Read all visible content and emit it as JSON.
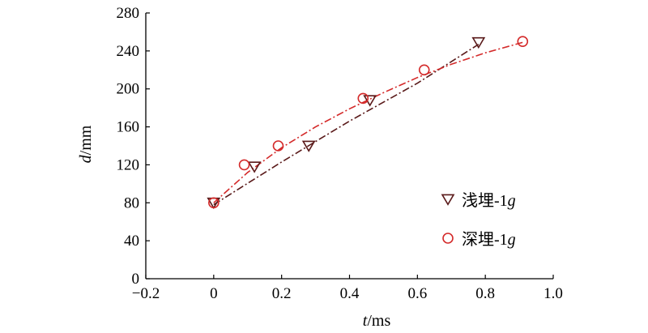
{
  "chart_data": {
    "type": "scatter",
    "xlabel_var": "t",
    "xlabel_unit": "/ms",
    "ylabel_var": "d",
    "ylabel_unit": "/mm",
    "xlim": [
      -0.2,
      1.0
    ],
    "ylim": [
      0,
      280
    ],
    "xticks": [
      -0.2,
      0,
      0.2,
      0.4,
      0.6,
      0.8,
      1.0
    ],
    "xtick_labels": [
      "−0.2",
      "0",
      "0.2",
      "0.4",
      "0.6",
      "0.8",
      "1.0"
    ],
    "yticks": [
      0,
      40,
      80,
      120,
      160,
      200,
      240,
      280
    ],
    "ytick_labels": [
      "0",
      "40",
      "80",
      "120",
      "160",
      "200",
      "240",
      "280"
    ],
    "grid": false,
    "legend_position": "lower-right",
    "series": [
      {
        "name": "浅埋-1g",
        "name_text": "浅埋-1",
        "name_suffix": "g",
        "marker": "triangle-down",
        "line": "dash-dot",
        "color": "#5a1a1a",
        "x": [
          0,
          0.12,
          0.28,
          0.46,
          0.78
        ],
        "y": [
          80,
          118,
          140,
          188,
          249
        ],
        "fit": [
          [
            0,
            78
          ],
          [
            0.2,
            123
          ],
          [
            0.4,
            166
          ],
          [
            0.6,
            206
          ],
          [
            0.78,
            247
          ]
        ]
      },
      {
        "name": "深埋-1g",
        "name_text": "深埋-1",
        "name_suffix": "g",
        "marker": "circle",
        "line": "dash-dot",
        "color": "#d42a2a",
        "x": [
          0,
          0.09,
          0.19,
          0.44,
          0.62,
          0.91
        ],
        "y": [
          80,
          120,
          140,
          190,
          220,
          250
        ],
        "fit": [
          [
            0,
            80
          ],
          [
            0.1,
            112
          ],
          [
            0.2,
            138
          ],
          [
            0.3,
            160
          ],
          [
            0.4,
            179
          ],
          [
            0.5,
            196
          ],
          [
            0.6,
            212
          ],
          [
            0.7,
            226
          ],
          [
            0.8,
            238
          ],
          [
            0.91,
            249
          ]
        ]
      }
    ]
  }
}
